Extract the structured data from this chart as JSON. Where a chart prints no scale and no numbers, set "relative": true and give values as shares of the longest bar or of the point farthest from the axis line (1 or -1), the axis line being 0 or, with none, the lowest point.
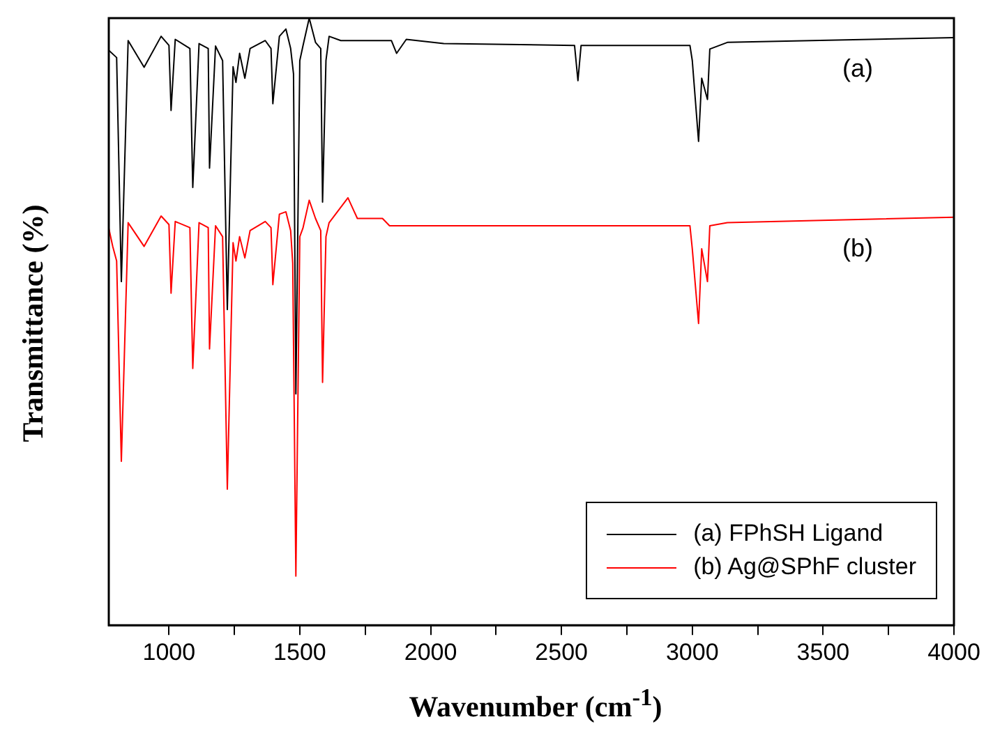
{
  "chart_data": {
    "type": "line",
    "xlabel": "Wavenumber (cm$^{-1}$)",
    "ylabel": "Transmittance (%)",
    "relative": true,
    "xlim": [
      770,
      4000
    ],
    "xticks": [
      {
        "value": 1000,
        "label": "1000"
      },
      {
        "value": 1250,
        "label": null
      },
      {
        "value": 1500,
        "label": "1500"
      },
      {
        "value": 1750,
        "label": null
      },
      {
        "value": 2000,
        "label": "2000"
      },
      {
        "value": 2250,
        "label": null
      },
      {
        "value": 2500,
        "label": "2500"
      },
      {
        "value": 2750,
        "label": null
      },
      {
        "value": 3000,
        "label": "3000"
      },
      {
        "value": 3250,
        "label": null
      },
      {
        "value": 3500,
        "label": "3500"
      },
      {
        "value": 3750,
        "label": null
      },
      {
        "value": 4000,
        "label": "4000"
      }
    ],
    "tick_labels": "x",
    "grid": false,
    "legend": "bottom right",
    "marker": "none",
    "line_style": "solid",
    "annotations": [
      "(a)",
      "(b)"
    ],
    "series": [
      {
        "name": "(a) FPhSH Ligand",
        "color": "#000000",
        "x": [
          770,
          800,
          818,
          844,
          905,
          970,
          1000,
          1008,
          1024,
          1080,
          1091,
          1115,
          1150,
          1155,
          1178,
          1205,
          1223,
          1245,
          1256,
          1270,
          1290,
          1310,
          1368,
          1390,
          1397,
          1422,
          1447,
          1465,
          1476,
          1485,
          1500,
          1512,
          1536,
          1560,
          1580,
          1587,
          1600,
          1612,
          1657,
          1850,
          1870,
          1907,
          2050,
          2550,
          2563,
          2575,
          2991,
          3000,
          3024,
          3036,
          3058,
          3067,
          3134,
          4000
        ],
        "values": [
          0.947,
          0.935,
          0.566,
          0.963,
          0.919,
          0.97,
          0.955,
          0.848,
          0.965,
          0.95,
          0.721,
          0.958,
          0.95,
          0.753,
          0.954,
          0.93,
          0.52,
          0.92,
          0.894,
          0.942,
          0.901,
          0.95,
          0.963,
          0.95,
          0.859,
          0.97,
          0.982,
          0.95,
          0.908,
          0.381,
          0.93,
          0.954,
          1,
          0.96,
          0.95,
          0.697,
          0.93,
          0.97,
          0.963,
          0.963,
          0.942,
          0.965,
          0.958,
          0.955,
          0.897,
          0.955,
          0.955,
          0.93,
          0.797,
          0.901,
          0.866,
          0.949,
          0.96,
          0.968
        ]
      },
      {
        "name": "(b) Ag@SPhF cluster",
        "color": "#ff0000",
        "x": [
          770,
          785,
          800,
          818,
          844,
          905,
          970,
          1000,
          1008,
          1024,
          1080,
          1091,
          1115,
          1150,
          1155,
          1178,
          1205,
          1223,
          1245,
          1256,
          1270,
          1290,
          1310,
          1368,
          1390,
          1397,
          1422,
          1447,
          1465,
          1473,
          1485,
          1500,
          1512,
          1536,
          1560,
          1580,
          1587,
          1600,
          1612,
          1684,
          1720,
          1816,
          1843,
          2991,
          3000,
          3024,
          3036,
          3058,
          3067,
          3134,
          4000
        ],
        "values": [
          0.654,
          0.624,
          0.6,
          0.27,
          0.663,
          0.624,
          0.674,
          0.66,
          0.547,
          0.665,
          0.655,
          0.423,
          0.663,
          0.655,
          0.455,
          0.658,
          0.64,
          0.224,
          0.63,
          0.6,
          0.64,
          0.605,
          0.65,
          0.665,
          0.655,
          0.561,
          0.677,
          0.681,
          0.65,
          0.596,
          0.081,
          0.64,
          0.654,
          0.7,
          0.67,
          0.65,
          0.4,
          0.64,
          0.663,
          0.704,
          0.67,
          0.67,
          0.658,
          0.658,
          0.62,
          0.497,
          0.62,
          0.566,
          0.658,
          0.663,
          0.672
        ]
      }
    ]
  }
}
